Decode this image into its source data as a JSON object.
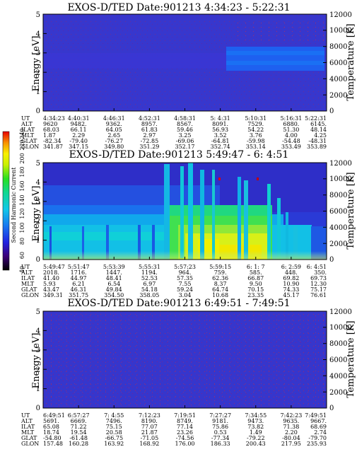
{
  "chart_data": [
    {
      "type": "heatmap",
      "title": "EXOS-D/TED  Date:901213  4:34:23 - 5:22:31",
      "ylabel": "Energy [eV]",
      "y2label": "Temperature [K]",
      "ylim": [
        0,
        5
      ],
      "y2lim": [
        0,
        12000
      ],
      "yticks": [
        "0",
        "1",
        "2",
        "3",
        "4",
        "5"
      ],
      "y2ticks": [
        "0",
        "2000",
        "4000",
        "6000",
        "8000",
        "10000",
        "12000"
      ],
      "ephemeris": {
        "labels": [
          "UT",
          "ALT",
          "ILAT",
          "MLT",
          "GLAT",
          "GLON"
        ],
        "columns": [
          [
            "4:34:23",
            "9620",
            "68.03",
            "1.87",
            "-82.34",
            "341.87"
          ],
          [
            "4:40:31",
            "9482.",
            "66.11",
            "2.29",
            "-79.40",
            "347.15"
          ],
          [
            "4:46:31",
            "9362.",
            "64.05",
            "2.65",
            "-76.27",
            "349.80"
          ],
          [
            "4:52:31",
            "8957.",
            "61.83",
            "2.97",
            "-72.85",
            "351.29"
          ],
          [
            "4:58:31",
            "8567.",
            "59.46",
            "3.25",
            "-69.06",
            "352.17"
          ],
          [
            "5: 4:31",
            "8091.",
            "56.93",
            "3.52",
            "-64.81",
            "352.74"
          ],
          [
            "5:10:31",
            "7529.",
            "54.22",
            "3.76",
            "-59.98",
            "353.14"
          ],
          [
            "5:16:31",
            "6880.",
            "51.30",
            "4.00",
            "-54.48",
            "353.49"
          ],
          [
            "5:22:31",
            "6145.",
            "48.14",
            "4.25",
            "-48.31",
            "353.89"
          ]
        ]
      }
    },
    {
      "type": "heatmap",
      "title": "EXOS-D/TED  Date:901213  5:49:47 - 6: 4:51",
      "ylabel": "Energy [eV]",
      "y2label": "Temperature [K]",
      "ylim": [
        0,
        5
      ],
      "y2lim": [
        0,
        12000
      ],
      "yticks": [
        "0",
        "1",
        "2",
        "3",
        "4",
        "5"
      ],
      "y2ticks": [
        "0",
        "2000",
        "4000",
        "6000",
        "8000",
        "10000",
        "12000"
      ],
      "colorbar": {
        "label": "Second Harmonic Current",
        "ticks": [
          "40",
          "60",
          "80",
          "100",
          "120",
          "140",
          "160",
          "180",
          "200",
          "220",
          "240"
        ]
      },
      "ephemeris": {
        "labels": [
          "UT",
          "ALT",
          "ILAT",
          "MLT",
          "GLAT",
          "GLON"
        ],
        "columns": [
          [
            "5:49:47",
            "2018.",
            "41.40",
            "5.93",
            "43.47",
            "349.31"
          ],
          [
            "5:51:47",
            "1716.",
            "44.97",
            "6.21",
            "46.31",
            "351.75"
          ],
          [
            "5:53:39",
            "1447.",
            "48.41",
            "6.54",
            "49.84",
            "354.50"
          ],
          [
            "5:55:31",
            "1194.",
            "52.53",
            "6.97",
            "54.18",
            "358.05"
          ],
          [
            "5:57:23",
            "964.",
            "57.35",
            "7.55",
            "59.24",
            "3.04"
          ],
          [
            "5:59:15",
            "759.",
            "62.36",
            "8.37",
            "64.74",
            "10.68"
          ],
          [
            "6: 1: 7",
            "585.",
            "66.87",
            "9.50",
            "70.15",
            "23.35"
          ],
          [
            "6: 2:59",
            "448.",
            "69.82",
            "10.90",
            "74.33",
            "45.17"
          ],
          [
            "6: 4:51",
            "350.",
            "69.73",
            "12.30",
            "75.17",
            "76.61"
          ]
        ]
      }
    },
    {
      "type": "heatmap",
      "title": "EXOS-D/TED  Date:901213  6:49:51 - 7:49:51",
      "ylabel": "Energy [eV]",
      "y2label": "Temperature [K]",
      "ylim": [
        0,
        5
      ],
      "y2lim": [
        0,
        12000
      ],
      "yticks": [
        "0",
        "1",
        "2",
        "3",
        "4",
        "5"
      ],
      "y2ticks": [
        "0",
        "2000",
        "4000",
        "6000",
        "8000",
        "10000",
        "12000"
      ],
      "ephemeris": {
        "labels": [
          "UT",
          "ALT",
          "ILAT",
          "MLT",
          "GLAT",
          "GLON"
        ],
        "columns": [
          [
            "6:49:51",
            "5691.",
            "65.08",
            "18.74",
            "-54.80",
            "157.48"
          ],
          [
            "6:57:27",
            "6669.",
            "71.22",
            "19.54",
            "-61.48",
            "160.28"
          ],
          [
            "7: 4:55",
            "7496.",
            "75.15",
            "20.58",
            "-66.75",
            "163.92"
          ],
          [
            "7:12:23",
            "8190.",
            "77.07",
            "21.87",
            "-71.05",
            "168.92"
          ],
          [
            "7:19:51",
            "8749.",
            "77.14",
            "23.26",
            "-74.56",
            "176.00"
          ],
          [
            "7:27:27",
            "9181.",
            "75.86",
            "0.53",
            "-77.34",
            "186.33"
          ],
          [
            "7:34:55",
            "9473.",
            "73.82",
            "1.49",
            "-79.22",
            "200.43"
          ],
          [
            "7:42:23",
            "9635.",
            "71.38",
            "2.20",
            "-80.04",
            "217.95"
          ],
          [
            "7:49:51",
            "9667.",
            "68.69",
            "2.74",
            "-79.70",
            "235.93"
          ]
        ]
      }
    }
  ]
}
